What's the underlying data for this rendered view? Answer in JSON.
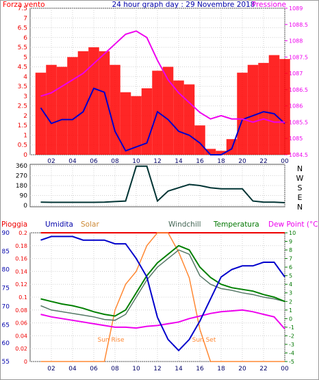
{
  "panel1": {
    "left_label": "Forza vento",
    "title": "24 hour graph day : 29 Novembre 2018",
    "right_label": "Pressione",
    "left_ticks": [
      "0",
      "0.5",
      "1",
      "1.5",
      "2",
      "2.5",
      "3",
      "3.5",
      "4",
      "4.5",
      "5",
      "5.5",
      "6",
      "6.5",
      "7",
      "7.5"
    ],
    "right_ticks": [
      "1084.5",
      "1085",
      "1085.5",
      "1086",
      "1086.5",
      "1087",
      "1087.5",
      "1088",
      "1088.5",
      "1089"
    ]
  },
  "panel2": {
    "left_ticks": [
      "0",
      "90",
      "180",
      "270",
      "360"
    ],
    "right_ticks": [
      "N",
      "W",
      "S",
      "E",
      "N"
    ]
  },
  "panel3": {
    "labels": {
      "pioggia": "Pioggia",
      "umidita": "Umidita",
      "solar": "Solar",
      "windchill": "Windchill",
      "temperatura": "Temperatura",
      "dewpoint": "Dew Point (°C)"
    },
    "hum_ticks": [
      "55",
      "60",
      "65",
      "70",
      "75",
      "80",
      "85",
      "90"
    ],
    "rain_ticks": [
      "0",
      "0.02",
      "0.04",
      "0.06",
      "0.08",
      "0.1",
      "0.12",
      "0.14",
      "0.16",
      "0.18",
      "0.2"
    ],
    "temp_ticks": [
      "-5",
      "-4",
      "-3",
      "-2",
      "-1",
      "0",
      "1",
      "2",
      "3",
      "4",
      "5",
      "6",
      "7",
      "8",
      "9",
      "10"
    ],
    "sunrise": "Sun Rise",
    "sunset": "Sun Set"
  },
  "x_ticks": [
    "02",
    "04",
    "06",
    "08",
    "10",
    "12",
    "14",
    "16",
    "18",
    "20",
    "22",
    "00"
  ],
  "colors": {
    "wind": "#ff0000",
    "gust": "#0000cc",
    "pressure": "#ee00ee",
    "direction": "#003333",
    "humidity": "#0000cc",
    "solar": "#ff8833",
    "windchill": "#557766",
    "temperature": "#008000",
    "dewpoint": "#ee00ee",
    "rain": "#ee0000"
  },
  "chart_data": [
    {
      "type": "line",
      "title": "24 hour graph day : 29 Novembre 2018",
      "x": [
        "01",
        "02",
        "03",
        "04",
        "05",
        "06",
        "07",
        "08",
        "09",
        "10",
        "11",
        "12",
        "13",
        "14",
        "15",
        "16",
        "17",
        "18",
        "19",
        "20",
        "21",
        "22",
        "23",
        "00"
      ],
      "series": [
        {
          "name": "Forza vento",
          "axis": "left",
          "values": [
            4.2,
            4.6,
            4.5,
            5.0,
            5.3,
            5.5,
            5.3,
            4.6,
            3.2,
            3.0,
            3.4,
            4.3,
            4.5,
            3.8,
            3.6,
            1.5,
            0.3,
            0.2,
            0.8,
            4.2,
            4.6,
            4.7,
            5.1,
            4.9
          ]
        },
        {
          "name": "",
          "axis": "left",
          "values": [
            2.4,
            1.6,
            1.8,
            1.8,
            2.2,
            3.4,
            3.2,
            1.2,
            0.2,
            0.4,
            0.6,
            2.2,
            1.8,
            1.2,
            1.0,
            0.6,
            0.0,
            0.0,
            0.3,
            1.8,
            2.0,
            2.2,
            2.1,
            1.6
          ]
        },
        {
          "name": "Pressione",
          "axis": "right",
          "values": [
            1086.3,
            1086.4,
            1086.6,
            1086.8,
            1087.0,
            1087.3,
            1087.6,
            1087.9,
            1088.2,
            1088.3,
            1088.1,
            1087.4,
            1086.8,
            1086.4,
            1086.1,
            1085.8,
            1085.6,
            1085.7,
            1085.6,
            1085.6,
            1085.5,
            1085.6,
            1085.5,
            1085.5
          ]
        }
      ],
      "ylim_left": [
        0,
        7.5
      ],
      "ylim_right": [
        1084.5,
        1089
      ]
    },
    {
      "type": "line",
      "x": [
        "01",
        "02",
        "03",
        "04",
        "05",
        "06",
        "07",
        "08",
        "09",
        "10",
        "11",
        "12",
        "13",
        "14",
        "15",
        "16",
        "17",
        "18",
        "19",
        "20",
        "21",
        "22",
        "23",
        "00"
      ],
      "series": [
        {
          "name": "",
          "values": [
            30,
            28,
            28,
            28,
            28,
            28,
            30,
            35,
            40,
            355,
            355,
            40,
            130,
            160,
            190,
            180,
            160,
            150,
            150,
            150,
            40,
            30,
            30,
            25
          ]
        }
      ],
      "ylim": [
        0,
        360
      ]
    },
    {
      "type": "line",
      "x": [
        "01",
        "02",
        "03",
        "04",
        "05",
        "06",
        "07",
        "08",
        "09",
        "10",
        "11",
        "12",
        "13",
        "14",
        "15",
        "16",
        "17",
        "18",
        "19",
        "20",
        "21",
        "22",
        "23",
        "00"
      ],
      "series": [
        {
          "name": "Umidita",
          "axis": "hum",
          "values": [
            88,
            89,
            89,
            89,
            88,
            88,
            88,
            87,
            87,
            83,
            78,
            67,
            61,
            58,
            61,
            66,
            72,
            78,
            80,
            81,
            81,
            82,
            82,
            78
          ]
        },
        {
          "name": "Solar",
          "axis": "rain",
          "values": [
            0,
            0,
            0,
            0,
            0,
            0,
            0,
            0.08,
            0.12,
            0.14,
            0.18,
            0.2,
            0.2,
            0.17,
            0.13,
            0.05,
            0,
            0,
            0,
            0,
            0,
            0,
            0,
            0
          ]
        },
        {
          "name": "Windchill",
          "axis": "temp",
          "values": [
            1.5,
            1.0,
            0.8,
            0.6,
            0.4,
            0.2,
            -0.1,
            -0.2,
            0.5,
            2.5,
            4.5,
            6.0,
            7.0,
            8.0,
            7.5,
            5.0,
            4.0,
            3.5,
            3.3,
            3.0,
            2.8,
            2.5,
            2.3,
            2.0
          ]
        },
        {
          "name": "Temperatura",
          "axis": "temp",
          "values": [
            2.3,
            2.0,
            1.7,
            1.5,
            1.2,
            0.8,
            0.5,
            0.3,
            1.0,
            3.0,
            5.0,
            6.5,
            7.5,
            8.5,
            8.0,
            6.0,
            4.8,
            4.0,
            3.6,
            3.4,
            3.2,
            2.8,
            2.5,
            2.0
          ]
        },
        {
          "name": "Dew Point (°C)",
          "axis": "temp",
          "values": [
            0.5,
            0.2,
            0,
            -0.2,
            -0.4,
            -0.6,
            -0.8,
            -1.0,
            -1.0,
            -1.1,
            -0.9,
            -0.8,
            -0.6,
            -0.4,
            0,
            0.3,
            0.6,
            0.8,
            0.9,
            1.0,
            0.8,
            0.5,
            0.2,
            -1.2
          ]
        },
        {
          "name": "Pioggia",
          "axis": "rain",
          "values": [
            0.2,
            0.2,
            0.2,
            0.2,
            0.2,
            0.2,
            0.2,
            0.2,
            0.2,
            0.2,
            0.2,
            0.2,
            0.2,
            0.2,
            0.2,
            0.2,
            0.2,
            0.2,
            0.2,
            0.2,
            0.2,
            0.2,
            0.2,
            0.2
          ]
        }
      ],
      "ylim_hum": [
        55,
        90
      ],
      "ylim_rain": [
        0,
        0.2
      ],
      "ylim_temp": [
        -5,
        10
      ]
    }
  ]
}
